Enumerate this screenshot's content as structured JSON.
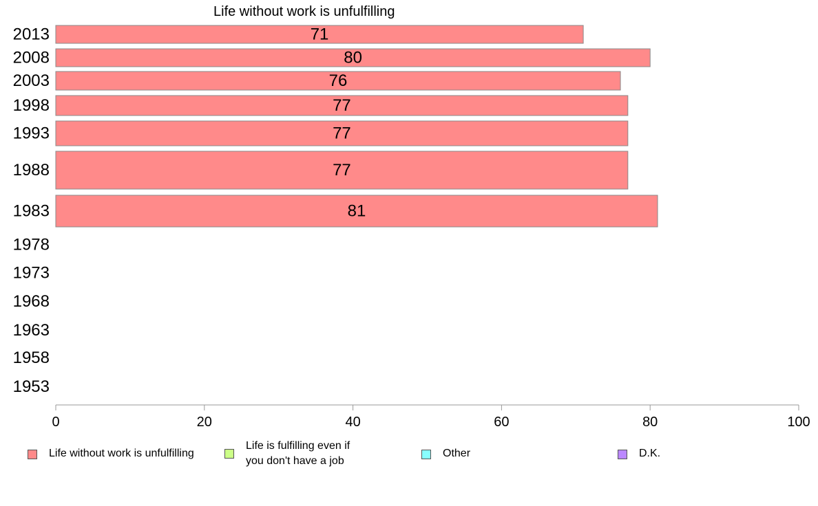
{
  "chart_data": {
    "type": "bar",
    "orientation": "horizontal",
    "title": "Life without work is unfulfilling",
    "categories": [
      "2013",
      "2008",
      "2003",
      "1998",
      "1993",
      "1988",
      "1983",
      "1978",
      "1973",
      "1968",
      "1963",
      "1958",
      "1953"
    ],
    "series": [
      {
        "name": "Life without work is unfulfilling",
        "color": "#ff8a8a",
        "values": [
          71,
          80,
          76,
          77,
          77,
          77,
          81,
          null,
          null,
          null,
          null,
          null,
          null
        ],
        "labels": [
          "71",
          "80",
          "76",
          "77",
          "77",
          "77",
          "81",
          "",
          "",
          "",
          "",
          "",
          ""
        ]
      }
    ],
    "xlim": [
      0,
      100
    ],
    "xticks": [
      "0",
      "20",
      "40",
      "60",
      "80",
      "100"
    ],
    "grid": false,
    "legend_position": "bottom",
    "legend": [
      {
        "label": "Life without work is unfulfilling",
        "color": "#ff8a8a"
      },
      {
        "label": "Life is fulfilling even if\nyou don't have a job",
        "color": "#ccff88"
      },
      {
        "label": "Other",
        "color": "#88ffff"
      },
      {
        "label": "D.K.",
        "color": "#bb88ff"
      }
    ]
  }
}
